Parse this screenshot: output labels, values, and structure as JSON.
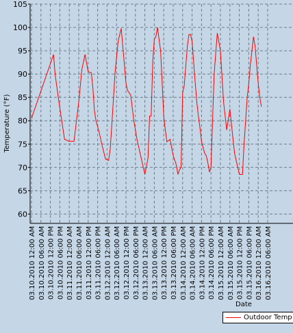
{
  "chart_data": {
    "type": "line",
    "title": "",
    "xlabel": "Date",
    "ylabel": "Temperature (°F)",
    "ylim": [
      58,
      105
    ],
    "yticks": [
      60,
      65,
      70,
      75,
      80,
      85,
      90,
      95,
      100,
      105
    ],
    "grid": true,
    "legend_position": "bottom-right",
    "xticks": [
      "03.10.2010 12:00 AM",
      "03.10.2010 06:00 AM",
      "03.10.2010 12:00 PM",
      "03.10.2010 06:00 PM",
      "03.11.2010 12:00 AM",
      "03.11.2010 06:00 AM",
      "03.11.2010 12:00 PM",
      "03.11.2010 06:00 PM",
      "03.12.2010 12:00 AM",
      "03.12.2010 06:00 AM",
      "03.12.2010 12:00 PM",
      "03.12.2010 06:00 PM",
      "03.13.2010 12:00 AM",
      "03.13.2010 06:00 AM",
      "03.13.2010 12:00 PM",
      "03.13.2010 06:00 PM",
      "03.14.2010 12:00 AM",
      "03.14.2010 06:00 AM",
      "03.14.2010 12:00 PM",
      "03.14.2010 06:00 PM",
      "03.15.2010 12:00 AM",
      "03.15.2010 06:00 AM",
      "03.15.2010 12:00 PM",
      "03.15.2010 06:00 PM",
      "03.16.2010 12:00 AM",
      "03.16.2010 06:00 AM"
    ],
    "series": [
      {
        "name": "Outdoor Temp",
        "color": "#ff0000",
        "x_hours": [
          0,
          14,
          15,
          17,
          19,
          21,
          24,
          27,
          30,
          32,
          34,
          36,
          38,
          39,
          40,
          41,
          43,
          45,
          47,
          49,
          50,
          51,
          53,
          55,
          57,
          59,
          60,
          61,
          63,
          65,
          67,
          68,
          69,
          71,
          72,
          74,
          75,
          76,
          77,
          78,
          79,
          80,
          82,
          83,
          84,
          85,
          86,
          88,
          90,
          92,
          93,
          94,
          95,
          96,
          97,
          99,
          100,
          101,
          102,
          104,
          105,
          106,
          107,
          108,
          110,
          111,
          112,
          113,
          114,
          115,
          116,
          118,
          120,
          122,
          124,
          126,
          128,
          129,
          130,
          131,
          132,
          134,
          135,
          136,
          137,
          138,
          139,
          140,
          141,
          142,
          143,
          144,
          145,
          146
        ],
        "y_values": [
          80.5,
          94.2,
          90,
          85,
          80.5,
          76,
          75.6,
          75.6,
          84,
          91,
          94.2,
          90.5,
          90.3,
          87,
          82,
          80,
          77.5,
          74.5,
          71.8,
          71.5,
          74,
          79,
          90,
          97,
          99.8,
          92,
          88,
          86.5,
          85.5,
          80,
          76,
          74.5,
          73,
          70,
          68.5,
          72,
          81,
          81,
          92.5,
          97.5,
          98,
          100,
          95,
          88,
          81,
          78,
          75.5,
          76,
          72.5,
          70.5,
          68.5,
          69.5,
          70,
          86,
          87.5,
          96,
          98.5,
          98.5,
          97,
          88,
          84,
          81,
          78.5,
          75.5,
          73,
          72.5,
          71,
          69,
          70,
          80,
          90,
          98.8,
          95,
          84,
          78,
          82.5,
          76,
          73,
          71.5,
          70,
          68.5,
          68.5,
          75,
          80,
          85,
          88,
          92,
          95,
          98,
          96,
          92,
          88,
          85,
          83
        ]
      }
    ]
  }
}
